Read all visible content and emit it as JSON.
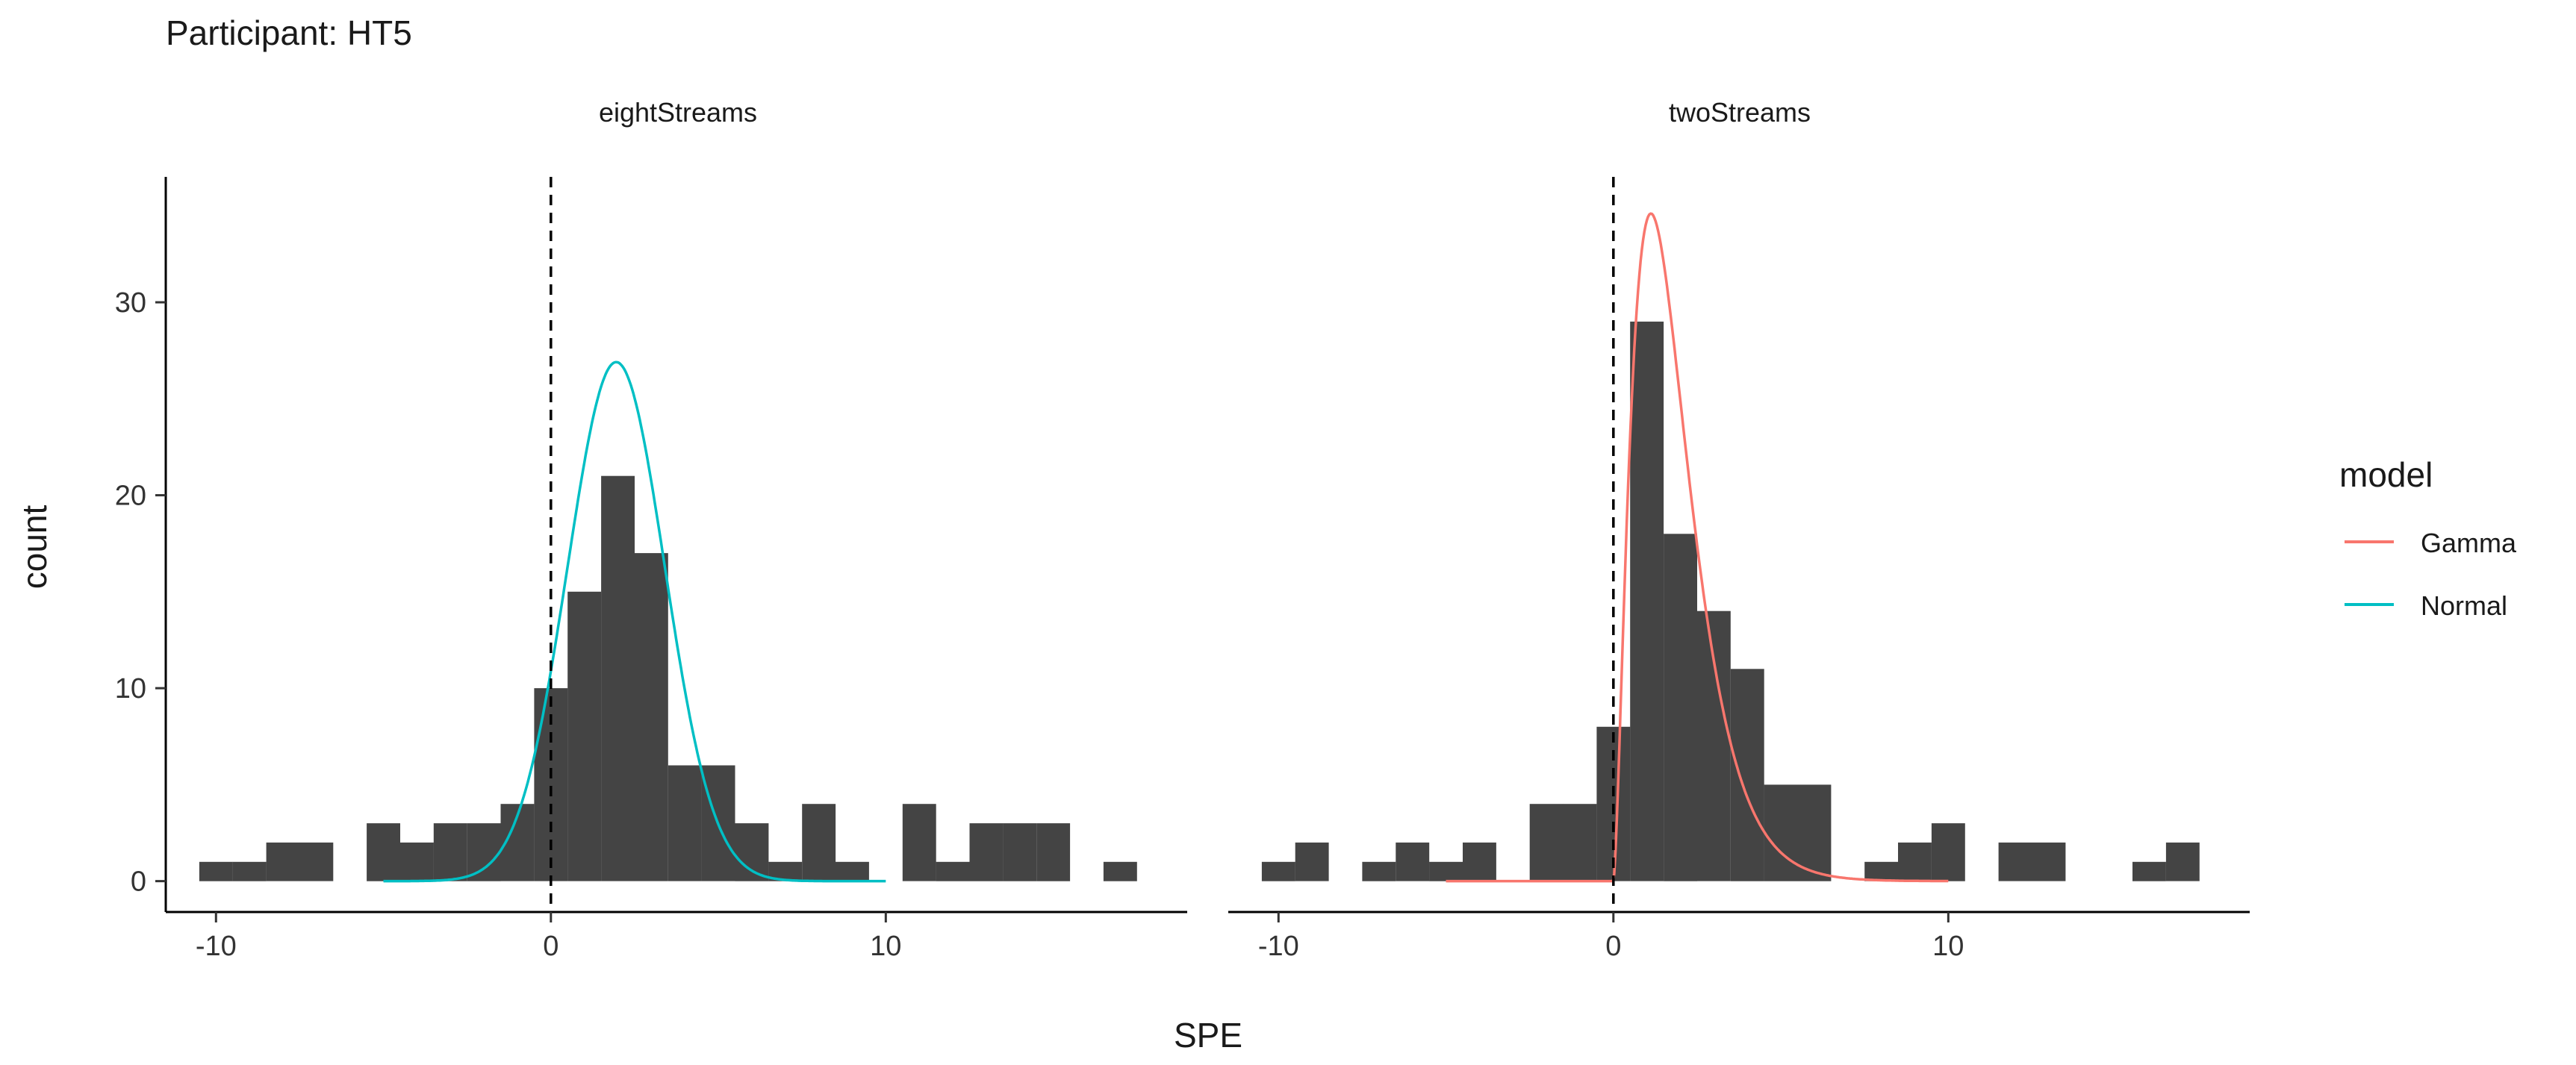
{
  "title": "Participant: HT5",
  "chart_data": {
    "type": "histogram",
    "title": "Participant: HT5",
    "xlabel": "SPE",
    "ylabel": "count",
    "xlim": [
      -11.5,
      19
    ],
    "ylim": [
      -1.6,
      36.5
    ],
    "x_ticks": [
      -10,
      0,
      10
    ],
    "y_ticks": [
      0,
      10,
      20,
      30
    ],
    "bin_width": 1,
    "reference_line_x": 0,
    "grid": false,
    "legend": {
      "title": "model",
      "placement": "right",
      "entries": [
        {
          "name": "Gamma",
          "color": "#F8766D"
        },
        {
          "name": "Normal",
          "color": "#00BFC4"
        }
      ]
    },
    "panels": [
      {
        "name": "eightStreams",
        "model": "Normal",
        "curve_color": "#00BFC4",
        "curve": {
          "mean": 1.95,
          "sd": 1.45,
          "peak": 26.9,
          "x_range": [
            -5,
            10
          ]
        },
        "bins": [
          {
            "x": -10,
            "count": 1
          },
          {
            "x": -9,
            "count": 1
          },
          {
            "x": -8,
            "count": 2
          },
          {
            "x": -7,
            "count": 2
          },
          {
            "x": -5,
            "count": 3
          },
          {
            "x": -4,
            "count": 2
          },
          {
            "x": -3,
            "count": 3
          },
          {
            "x": -2,
            "count": 3
          },
          {
            "x": -1,
            "count": 4
          },
          {
            "x": 0,
            "count": 10
          },
          {
            "x": 1,
            "count": 15
          },
          {
            "x": 2,
            "count": 21
          },
          {
            "x": 3,
            "count": 17
          },
          {
            "x": 4,
            "count": 6
          },
          {
            "x": 5,
            "count": 6
          },
          {
            "x": 6,
            "count": 3
          },
          {
            "x": 7,
            "count": 1
          },
          {
            "x": 8,
            "count": 4
          },
          {
            "x": 9,
            "count": 1
          },
          {
            "x": 11,
            "count": 4
          },
          {
            "x": 12,
            "count": 1
          },
          {
            "x": 13,
            "count": 3
          },
          {
            "x": 14,
            "count": 3
          },
          {
            "x": 15,
            "count": 3
          },
          {
            "x": 17,
            "count": 1
          }
        ]
      },
      {
        "name": "twoStreams",
        "model": "Gamma",
        "curve_color": "#F8766D",
        "curve": {
          "shift": 0,
          "shape": 2.6,
          "scale": 0.7,
          "peak": 34.6,
          "x_range": [
            -5,
            10
          ]
        },
        "bins": [
          {
            "x": -10,
            "count": 1
          },
          {
            "x": -9,
            "count": 2
          },
          {
            "x": -7,
            "count": 1
          },
          {
            "x": -6,
            "count": 2
          },
          {
            "x": -5,
            "count": 1
          },
          {
            "x": -4,
            "count": 2
          },
          {
            "x": -2,
            "count": 4
          },
          {
            "x": -1,
            "count": 4
          },
          {
            "x": 0,
            "count": 8
          },
          {
            "x": 1,
            "count": 29
          },
          {
            "x": 2,
            "count": 18
          },
          {
            "x": 3,
            "count": 14
          },
          {
            "x": 4,
            "count": 11
          },
          {
            "x": 5,
            "count": 5
          },
          {
            "x": 6,
            "count": 5
          },
          {
            "x": 8,
            "count": 1
          },
          {
            "x": 9,
            "count": 2
          },
          {
            "x": 10,
            "count": 3
          },
          {
            "x": 12,
            "count": 2
          },
          {
            "x": 13,
            "count": 2
          },
          {
            "x": 16,
            "count": 1
          },
          {
            "x": 17,
            "count": 2
          }
        ]
      }
    ]
  }
}
